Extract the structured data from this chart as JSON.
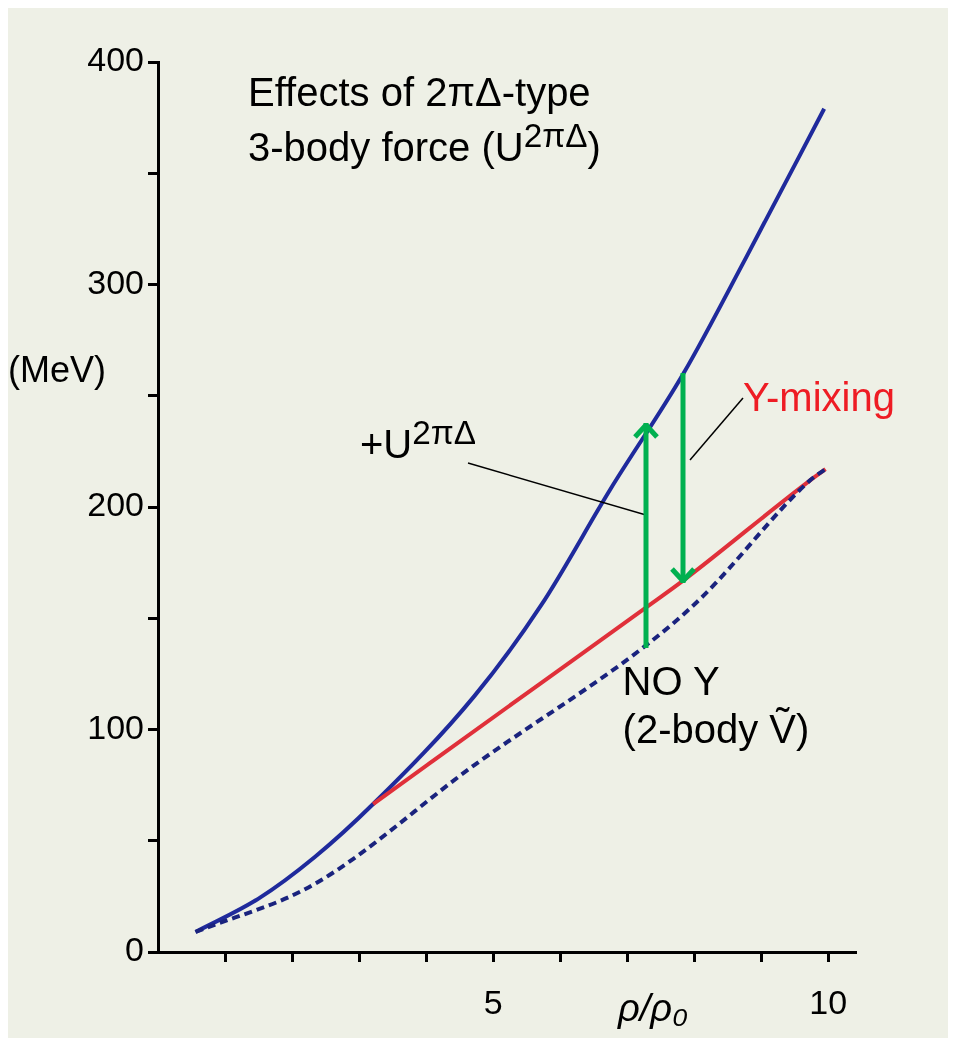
{
  "chart_data": {
    "type": "line",
    "title": "Effects of 2πΔ-type\n3-body force (U$^{2πΔ}$)",
    "xlabel": "ρ/ρ₀",
    "ylabel": "(MeV)",
    "xlim": [
      0,
      10.4
    ],
    "ylim": [
      0,
      400
    ],
    "xticks": [
      {
        "value": 1,
        "label": null
      },
      {
        "value": 2,
        "label": null
      },
      {
        "value": 3,
        "label": null
      },
      {
        "value": 4,
        "label": null
      },
      5,
      {
        "value": 6,
        "label": null
      },
      {
        "value": 7,
        "label": null
      },
      {
        "value": 8,
        "label": null
      },
      {
        "value": 9,
        "label": null
      },
      10
    ],
    "yticks": [
      0,
      {
        "value": 50,
        "label": null
      },
      100,
      {
        "value": 150,
        "label": null
      },
      200,
      {
        "value": 250,
        "label": null
      },
      300,
      {
        "value": 350,
        "label": null
      },
      400
    ],
    "grid": false,
    "legend": false,
    "marker": "none",
    "series": [
      {
        "color": "#1f2a9c",
        "x": [
          0.56,
          1.5,
          2.34,
          3.21,
          4.72,
          5.72,
          6.75,
          7.84,
          8.79,
          9.94
        ],
        "values": [
          9,
          24,
          42.7,
          66.5,
          115,
          156,
          208,
          260,
          313,
          379
        ]
      },
      {
        "color": "#e0303a",
        "x": [
          3.21,
          5.72,
          7.29,
          7.84,
          9.73,
          9.96
        ],
        "values": [
          66.5,
          121,
          155,
          167,
          212,
          217
        ]
      },
      {
        "color": "#1a237e",
        "line_style": "dashed",
        "x": [
          0.56,
          2.34,
          4.72,
          7.29,
          8.1,
          9.73,
          9.96
        ],
        "values": [
          9,
          30.6,
          84,
          138,
          159,
          212,
          217
        ]
      }
    ],
    "annotations": [
      "+U$^{2πΔ}$",
      "Y-mixing",
      {
        "text": "NO Y\n(2-body Ṽ)",
        "x": 7.29,
        "y": 138
      }
    ]
  }
}
